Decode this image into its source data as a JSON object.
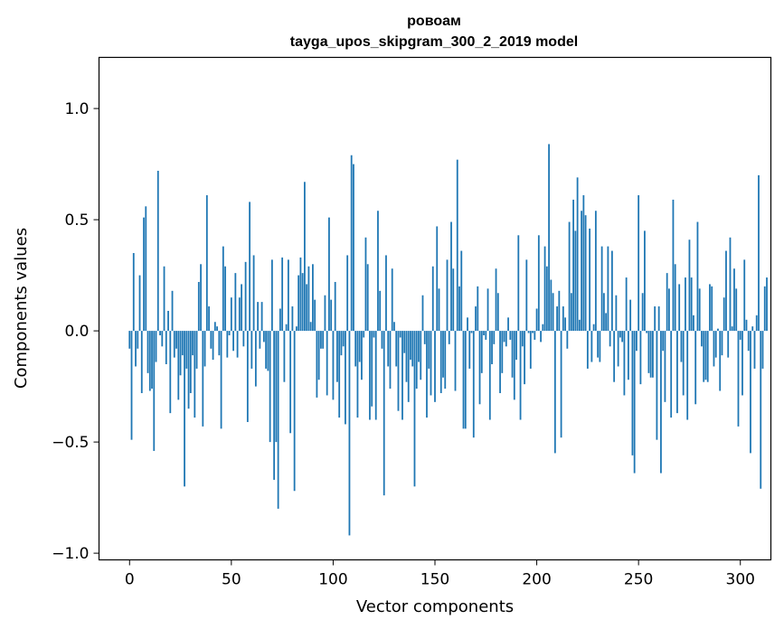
{
  "chart_data": {
    "type": "bar",
    "title": "ровоам",
    "subtitle": "tayga_upos_skipgram_300_2_2019 model",
    "xlabel": "Vector components",
    "ylabel": "Components values",
    "xlim": [
      -15,
      315
    ],
    "ylim": [
      -1.03,
      1.23
    ],
    "xticks": [
      0,
      50,
      100,
      150,
      200,
      250,
      300
    ],
    "xtick_labels": [
      "0",
      "50",
      "100",
      "150",
      "200",
      "250",
      "300"
    ],
    "yticks": [
      -1.0,
      -0.5,
      0.0,
      0.5,
      1.0
    ],
    "ytick_labels": [
      "−1.0",
      "−0.5",
      "0.0",
      "0.5",
      "1.0"
    ],
    "bar_color": "#1f77b4",
    "grid": false,
    "series": [
      {
        "values": [
          -0.08,
          -0.49,
          0.35,
          -0.16,
          -0.08,
          0.25,
          -0.28,
          0.51,
          0.56,
          -0.19,
          -0.27,
          -0.26,
          -0.54,
          -0.14,
          0.72,
          -0.02,
          -0.07,
          0.29,
          -0.15,
          0.09,
          -0.37,
          0.18,
          -0.12,
          -0.08,
          -0.31,
          -0.2,
          -0.11,
          -0.7,
          -0.17,
          -0.35,
          -0.28,
          -0.11,
          -0.39,
          -0.17,
          0.22,
          0.3,
          -0.43,
          -0.16,
          0.61,
          0.11,
          -0.08,
          -0.13,
          0.04,
          0.02,
          -0.11,
          -0.44,
          0.38,
          0.29,
          -0.12,
          -0.02,
          0.15,
          -0.09,
          0.26,
          -0.12,
          0.15,
          0.21,
          -0.07,
          0.31,
          -0.41,
          0.58,
          -0.17,
          0.34,
          -0.25,
          0.13,
          -0.08,
          0.13,
          -0.05,
          -0.17,
          -0.18,
          -0.5,
          0.32,
          -0.67,
          -0.5,
          -0.8,
          0.1,
          0.33,
          -0.23,
          0.03,
          0.32,
          -0.46,
          0.11,
          -0.72,
          0.02,
          0.25,
          0.33,
          0.26,
          0.67,
          0.21,
          0.29,
          0.04,
          0.3,
          0.14,
          -0.3,
          -0.22,
          -0.08,
          -0.08,
          0.16,
          -0.29,
          0.51,
          0.14,
          -0.31,
          0.22,
          -0.23,
          -0.39,
          -0.11,
          -0.07,
          -0.42,
          0.34,
          -0.92,
          0.79,
          0.75,
          -0.16,
          -0.39,
          -0.14,
          -0.22,
          -0.03,
          0.42,
          0.3,
          -0.4,
          -0.34,
          -0.03,
          -0.4,
          0.54,
          0.18,
          -0.08,
          -0.74,
          0.34,
          -0.16,
          -0.26,
          0.28,
          0.04,
          -0.16,
          -0.36,
          -0.03,
          -0.4,
          -0.1,
          -0.23,
          -0.32,
          -0.13,
          -0.16,
          -0.7,
          -0.26,
          -0.14,
          -0.22,
          0.16,
          -0.06,
          -0.39,
          -0.17,
          -0.29,
          0.29,
          -0.32,
          0.47,
          0.19,
          -0.28,
          -0.21,
          -0.26,
          0.32,
          -0.06,
          0.49,
          0.28,
          -0.27,
          0.77,
          0.2,
          0.36,
          -0.44,
          -0.44,
          0.06,
          -0.17,
          -0.01,
          -0.48,
          0.11,
          0.2,
          -0.33,
          -0.19,
          -0.02,
          -0.04,
          0.19,
          -0.4,
          -0.15,
          -0.06,
          0.28,
          0.17,
          -0.28,
          -0.19,
          -0.05,
          -0.07,
          0.06,
          -0.04,
          -0.21,
          -0.31,
          -0.13,
          0.43,
          -0.4,
          -0.07,
          -0.24,
          0.32,
          -0.01,
          -0.17,
          -0.01,
          -0.04,
          0.1,
          0.43,
          -0.05,
          0.03,
          0.38,
          0.29,
          0.84,
          0.23,
          0.17,
          -0.55,
          0.11,
          0.18,
          -0.48,
          0.11,
          0.06,
          -0.08,
          0.49,
          0.17,
          0.59,
          0.45,
          0.69,
          0.05,
          0.54,
          0.61,
          0.52,
          -0.17,
          0.46,
          -0.14,
          0.03,
          0.54,
          -0.12,
          -0.14,
          0.38,
          0.17,
          0.08,
          0.38,
          -0.07,
          0.36,
          -0.23,
          0.16,
          -0.16,
          -0.03,
          -0.05,
          -0.29,
          0.24,
          -0.22,
          0.14,
          -0.56,
          -0.64,
          -0.09,
          0.61,
          -0.24,
          0.17,
          0.45,
          -0.01,
          -0.19,
          -0.21,
          -0.21,
          0.11,
          -0.49,
          0.11,
          -0.64,
          -0.09,
          -0.32,
          0.26,
          0.19,
          -0.39,
          0.59,
          0.3,
          -0.37,
          0.21,
          -0.14,
          -0.29,
          0.24,
          -0.4,
          0.41,
          0.24,
          0.07,
          -0.33,
          0.49,
          0.19,
          -0.07,
          -0.23,
          -0.22,
          -0.23,
          0.21,
          0.2,
          -0.16,
          -0.12,
          0.01,
          -0.27,
          -0.11,
          0.15,
          0.36,
          -0.12,
          0.42,
          0.02,
          0.28,
          0.19,
          -0.43,
          -0.04,
          -0.29,
          0.32,
          0.05,
          -0.09,
          -0.55,
          0.02,
          -0.17,
          0.07,
          0.7,
          -0.71,
          -0.17,
          0.2,
          0.24
        ]
      }
    ]
  }
}
